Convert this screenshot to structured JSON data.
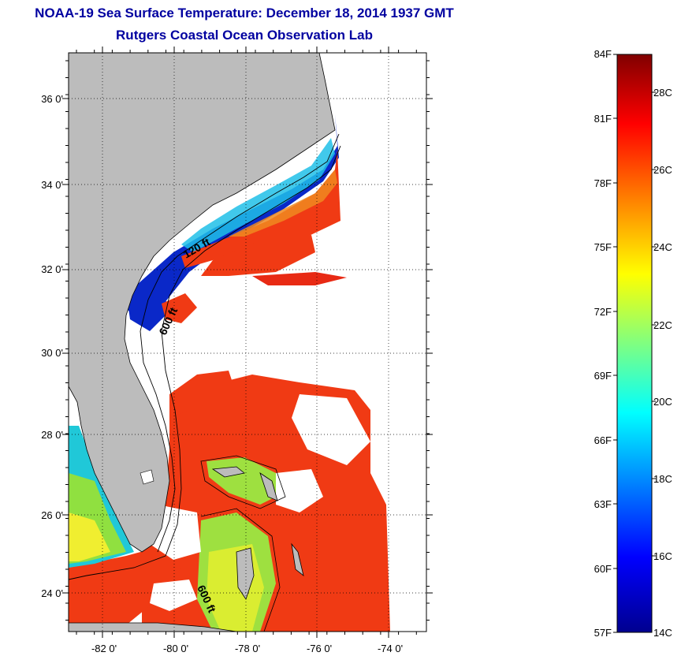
{
  "title": "NOAA-19 Sea Surface Temperature:  December 18, 2014 1937 GMT",
  "subtitle": "Rutgers Coastal Ocean Observation Lab",
  "map": {
    "lat_labels": [
      "36 0'",
      "34 0'",
      "32 0'",
      "30 0'",
      "28 0'",
      "26 0'",
      "24 0'"
    ],
    "lon_labels": [
      "-82 0'",
      "-80 0'",
      "-78 0'",
      "-76 0'",
      "-74 0'"
    ],
    "isobath_labels": [
      "120 ft",
      "600 ft",
      "600 ft"
    ],
    "colors": {
      "land": "#bcbcbc",
      "cloud": "#ffffff",
      "cold": "#0a28c8",
      "warm": "#f03a14"
    }
  },
  "colorbar": {
    "f_labels": [
      "84F",
      "81F",
      "78F",
      "75F",
      "72F",
      "69F",
      "66F",
      "63F",
      "60F",
      "57F"
    ],
    "c_labels": [
      "28C",
      "26C",
      "24C",
      "22C",
      "20C",
      "18C",
      "16C",
      "14C"
    ],
    "colors": [
      "#00008f",
      "#0000ff",
      "#00ffff",
      "#80ff80",
      "#ffff00",
      "#ff8000",
      "#ff0000",
      "#800000"
    ]
  }
}
